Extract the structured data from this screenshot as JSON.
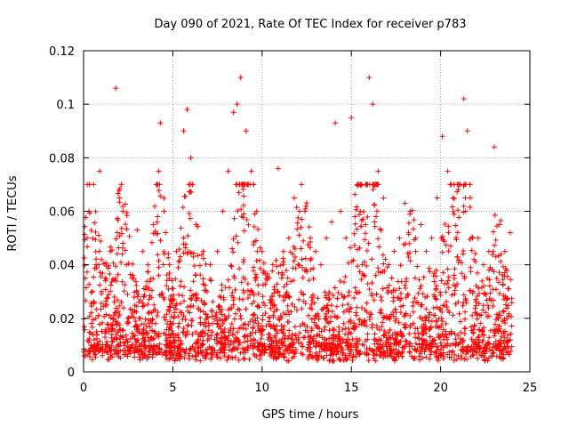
{
  "chart_data": {
    "type": "scatter",
    "title": "Day 090 of 2021, Rate Of TEC Index for receiver p783",
    "xlabel": "GPS time / hours",
    "ylabel": "ROTI / TECUs",
    "xlim": [
      0,
      25
    ],
    "ylim": [
      0,
      0.12
    ],
    "xticks": [
      0,
      5,
      10,
      15,
      20,
      25
    ],
    "xtick_labels": [
      "0",
      "5",
      "10",
      "15",
      "20",
      "25"
    ],
    "yticks": [
      0,
      0.02,
      0.04,
      0.06,
      0.08,
      0.1,
      0.12
    ],
    "ytick_labels": [
      "0",
      "0.02",
      "0.04",
      "0.06",
      "0.08",
      "0.1",
      "0.12"
    ],
    "grid": true,
    "marker": "plus",
    "color": "#ff0000",
    "series": [
      {
        "x": [
          0.1,
          0.2,
          0.3,
          0.5,
          0.7,
          0.9,
          1.0,
          1.2,
          1.5,
          1.8,
          2.0,
          2.2,
          2.4,
          2.7,
          3.0,
          3.3,
          3.6,
          3.9,
          4.2,
          4.3,
          4.5,
          4.8,
          5.2,
          5.6,
          5.8,
          6.0,
          6.3,
          6.7,
          7.1,
          7.5,
          7.8,
          8.1,
          8.4,
          8.6,
          8.8,
          9.1,
          9.4,
          9.7,
          10.0,
          10.3,
          10.6,
          10.9,
          11.2,
          11.5,
          11.8,
          12.1,
          12.4,
          12.7,
          13.0,
          13.3,
          13.6,
          13.9,
          14.1,
          14.4,
          14.7,
          15.0,
          15.2,
          15.5,
          15.8,
          16.0,
          16.2,
          16.5,
          16.8,
          17.1,
          17.4,
          17.7,
          18.0,
          18.3,
          18.6,
          18.9,
          19.2,
          19.5,
          19.8,
          20.1,
          20.4,
          20.7,
          21.0,
          21.3,
          21.5,
          21.8,
          22.1,
          22.4,
          22.7,
          23.0,
          23.3,
          23.6,
          23.9
        ],
        "y": [
          0.035,
          0.05,
          0.06,
          0.03,
          0.04,
          0.075,
          0.03,
          0.035,
          0.045,
          0.106,
          0.065,
          0.06,
          0.04,
          0.035,
          0.053,
          0.045,
          0.04,
          0.055,
          0.075,
          0.093,
          0.06,
          0.04,
          0.045,
          0.09,
          0.098,
          0.08,
          0.055,
          0.045,
          0.04,
          0.045,
          0.06,
          0.075,
          0.097,
          0.1,
          0.11,
          0.09,
          0.075,
          0.06,
          0.045,
          0.035,
          0.04,
          0.076,
          0.045,
          0.05,
          0.065,
          0.06,
          0.06,
          0.05,
          0.045,
          0.04,
          0.05,
          0.056,
          0.093,
          0.06,
          0.05,
          0.095,
          0.058,
          0.06,
          0.055,
          0.11,
          0.1,
          0.075,
          0.065,
          0.04,
          0.045,
          0.05,
          0.063,
          0.06,
          0.05,
          0.055,
          0.045,
          0.05,
          0.065,
          0.088,
          0.075,
          0.065,
          0.07,
          0.102,
          0.09,
          0.05,
          0.05,
          0.04,
          0.045,
          0.084,
          0.055,
          0.045,
          0.052
        ]
      }
    ]
  }
}
